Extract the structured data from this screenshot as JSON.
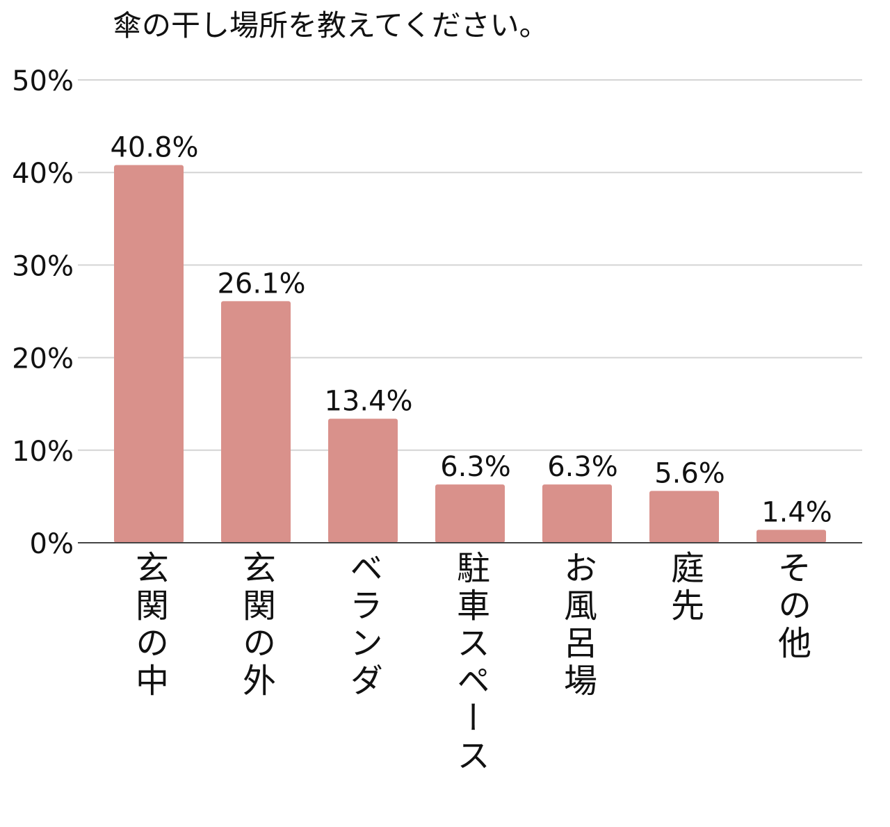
{
  "chart_data": {
    "type": "bar",
    "title": "傘の干し場所を教えてください。",
    "xlabel": "",
    "ylabel": "",
    "ylim": [
      0,
      50
    ],
    "yticks": [
      0,
      10,
      20,
      30,
      40,
      50
    ],
    "ytick_labels": [
      "0%",
      "10%",
      "20%",
      "30%",
      "40%",
      "50%"
    ],
    "grid": true,
    "legend": "none",
    "categories": [
      "玄関の中",
      "玄関の外",
      "ベランダ",
      "駐車スペース",
      "お風呂場",
      "庭先",
      "その他"
    ],
    "values": [
      40.8,
      26.1,
      13.4,
      6.3,
      6.3,
      5.6,
      1.4
    ],
    "data_labels": [
      "40.8%",
      "26.1%",
      "13.4%",
      "6.3%",
      "6.3%",
      "5.6%",
      "1.4%"
    ],
    "colors": {
      "bar": "#d9918b",
      "grid": "#d4d4d4",
      "axis": "#444444",
      "text": "#111111"
    }
  }
}
